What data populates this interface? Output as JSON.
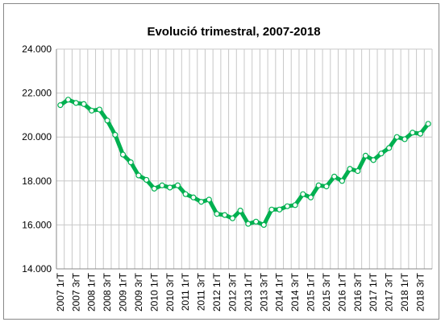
{
  "chart_data": {
    "type": "line",
    "title": "Evolució trimestral, 2007-2018",
    "categories": [
      "2007 1rT",
      null,
      "2007 3rT",
      null,
      "2008 1rT",
      null,
      "2008 3rT",
      null,
      "2009 1rT",
      null,
      "2009 3rT",
      null,
      "2010 1rT",
      null,
      "2010 3rT",
      null,
      "2011 1rT",
      null,
      "2011 3rT",
      null,
      "2012 1rT",
      null,
      "2012 3rT",
      null,
      "2013 1rT",
      null,
      "2013 3rT",
      null,
      "2014 1rT",
      null,
      "2014 3rT",
      null,
      "2015 1rT",
      null,
      "2015 3rT",
      null,
      "2016 1rT",
      null,
      "2016 3rT",
      null,
      "2017 1rT",
      null,
      "2017 3rT",
      null,
      "2018 1rT",
      null,
      "2018 3rT",
      null
    ],
    "series": [
      {
        "color": "#00b050",
        "values": [
          21450,
          21700,
          21550,
          21500,
          21200,
          21250,
          20750,
          20100,
          19200,
          18850,
          18250,
          18050,
          17650,
          17800,
          17700,
          17800,
          17400,
          17250,
          17050,
          17150,
          16500,
          16450,
          16300,
          16650,
          16050,
          16150,
          16000,
          16700,
          16700,
          16850,
          16900,
          17400,
          17250,
          17800,
          17750,
          18200,
          18000,
          18550,
          18450,
          19150,
          18950,
          19250,
          19500,
          20000,
          19900,
          20200,
          20150,
          20600
        ]
      }
    ],
    "ylim": [
      14000,
      24000
    ],
    "yticks": [
      {
        "value": 14000,
        "label": "14.000"
      },
      {
        "value": 16000,
        "label": "16.000"
      },
      {
        "value": 18000,
        "label": "18.000"
      },
      {
        "value": 20000,
        "label": "20.000"
      },
      {
        "value": 22000,
        "label": "22.000"
      },
      {
        "value": 24000,
        "label": "24.000"
      }
    ],
    "grid": true
  }
}
